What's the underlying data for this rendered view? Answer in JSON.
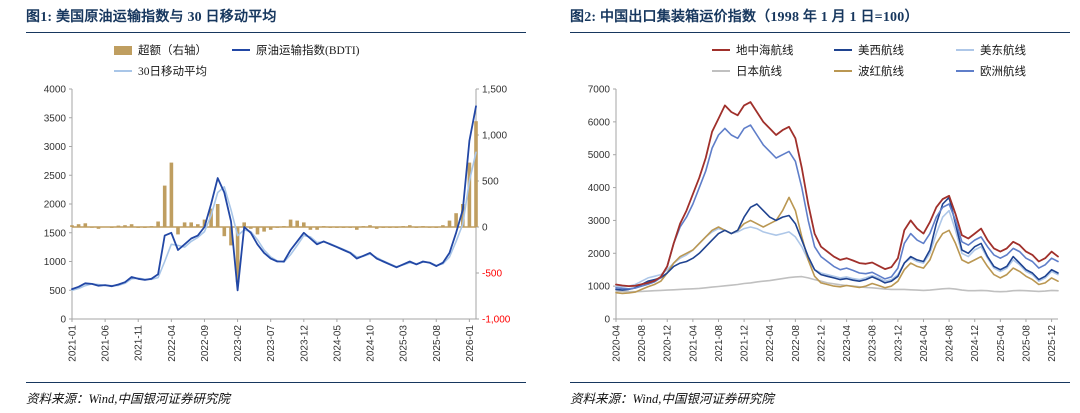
{
  "colors": {
    "title_navy": "#17375E",
    "rule_navy": "#17375E",
    "negative_axis_red": "#FF0000",
    "bdti_line": "#2247A5",
    "ma30_line": "#A9C6E8",
    "excess_bar": "#BF9E60",
    "mediterranean_line": "#A0302B",
    "us_west_line": "#1F4390",
    "us_east_line": "#AEC7E8",
    "japan_line": "#C0C0C0",
    "gulf_redsea_line": "#BA9752",
    "europe_line": "#5F7EC9"
  },
  "chart_data": [
    {
      "id": "figure1",
      "type": "line+bar",
      "title": "图1: 美国原油运输指数与 30 日移动平均",
      "source": "资料来源：Wind,中国银河证券研究院",
      "x_start": "2021-01",
      "x_frequency": "monthly",
      "x_ticks": [
        {
          "i": 0,
          "label": "2021-01"
        },
        {
          "i": 5,
          "label": "2021-06"
        },
        {
          "i": 10,
          "label": "2021-11"
        },
        {
          "i": 15,
          "label": "2022-04"
        },
        {
          "i": 20,
          "label": "2022-09"
        },
        {
          "i": 25,
          "label": "2023-02"
        },
        {
          "i": 30,
          "label": "2023-07"
        },
        {
          "i": 35,
          "label": "2023-12"
        },
        {
          "i": 40,
          "label": "2024-05"
        },
        {
          "i": 45,
          "label": "2024-10"
        },
        {
          "i": 50,
          "label": "2025-03"
        },
        {
          "i": 55,
          "label": "2025-08"
        },
        {
          "i": 60,
          "label": "2026-01"
        }
      ],
      "axes": {
        "left": {
          "min": 0,
          "max": 4000,
          "ticks": [
            {
              "v": 0,
              "label": "0"
            },
            {
              "v": 500,
              "label": "500"
            },
            {
              "v": 1000,
              "label": "1000"
            },
            {
              "v": 1500,
              "label": "1500"
            },
            {
              "v": 2000,
              "label": "2000"
            },
            {
              "v": 2500,
              "label": "2500"
            },
            {
              "v": 3000,
              "label": "3000"
            },
            {
              "v": 3500,
              "label": "3500"
            },
            {
              "v": 4000,
              "label": "4000"
            }
          ]
        },
        "right": {
          "min": -1000,
          "max": 1500,
          "ticks": [
            {
              "v": -1000,
              "label": "-1,000",
              "color": "#FF0000"
            },
            {
              "v": -500,
              "label": "-500",
              "color": "#FF0000"
            },
            {
              "v": 0,
              "label": "0"
            },
            {
              "v": 500,
              "label": "500"
            },
            {
              "v": 1000,
              "label": "1,000"
            },
            {
              "v": 1500,
              "label": "1,500"
            }
          ]
        }
      },
      "series": [
        {
          "name": "超额（右轴）",
          "style": "bar",
          "axis": "right",
          "color": "#BF9E60",
          "z": 1,
          "values": [
            20,
            30,
            40,
            0,
            -20,
            5,
            -10,
            15,
            20,
            30,
            -10,
            -10,
            10,
            60,
            450,
            700,
            -80,
            50,
            50,
            30,
            80,
            200,
            250,
            -100,
            -200,
            -600,
            50,
            -20,
            -80,
            -50,
            -30,
            -10,
            10,
            80,
            70,
            50,
            -30,
            -30,
            10,
            -10,
            -10,
            -10,
            -10,
            -30,
            10,
            20,
            -20,
            -10,
            -10,
            -10,
            10,
            20,
            -10,
            10,
            -5,
            -10,
            20,
            70,
            150,
            250,
            700,
            1150
          ]
        },
        {
          "name": "原油运输指数(BDTI)",
          "style": "line",
          "axis": "left",
          "color": "#2247A5",
          "width": 1.8,
          "z": 3,
          "values": [
            520,
            560,
            620,
            610,
            580,
            590,
            570,
            600,
            640,
            730,
            700,
            680,
            700,
            780,
            1450,
            1500,
            1200,
            1300,
            1400,
            1450,
            1600,
            2000,
            2450,
            2200,
            1700,
            500,
            1600,
            1500,
            1300,
            1150,
            1050,
            1000,
            1000,
            1200,
            1350,
            1500,
            1400,
            1300,
            1350,
            1300,
            1250,
            1200,
            1150,
            1050,
            1100,
            1150,
            1050,
            1000,
            950,
            900,
            950,
            1000,
            950,
            1000,
            980,
            920,
            980,
            1150,
            1500,
            1900,
            3100,
            3700
          ]
        },
        {
          "name": "30日移动平均",
          "style": "line",
          "axis": "left",
          "color": "#A9C6E8",
          "width": 1.6,
          "z": 2,
          "values": [
            500,
            530,
            580,
            610,
            600,
            585,
            580,
            585,
            620,
            700,
            710,
            690,
            690,
            720,
            1000,
            1300,
            1280,
            1250,
            1350,
            1420,
            1520,
            1800,
            2200,
            2300,
            1900,
            1450,
            1550,
            1520,
            1380,
            1200,
            1080,
            1010,
            990,
            1120,
            1280,
            1450,
            1430,
            1330,
            1340,
            1310,
            1260,
            1210,
            1160,
            1080,
            1090,
            1130,
            1070,
            1010,
            960,
            910,
            940,
            980,
            960,
            990,
            985,
            930,
            960,
            1080,
            1350,
            1650,
            2400,
            2900
          ]
        }
      ]
    },
    {
      "id": "figure2",
      "type": "line",
      "title": "图2: 中国出口集装箱运价指数（1998 年 1 月 1 日=100）",
      "source": "资料来源：Wind,中国银河证券研究院",
      "x_start": "2020-04",
      "x_frequency": "monthly",
      "x_ticks": [
        {
          "i": 0,
          "label": "2020-04"
        },
        {
          "i": 4,
          "label": "2020-08"
        },
        {
          "i": 8,
          "label": "2020-12"
        },
        {
          "i": 12,
          "label": "2021-04"
        },
        {
          "i": 16,
          "label": "2021-08"
        },
        {
          "i": 20,
          "label": "2021-12"
        },
        {
          "i": 24,
          "label": "2022-04"
        },
        {
          "i": 28,
          "label": "2022-08"
        },
        {
          "i": 32,
          "label": "2022-12"
        },
        {
          "i": 36,
          "label": "2023-04"
        },
        {
          "i": 40,
          "label": "2023-08"
        },
        {
          "i": 44,
          "label": "2023-12"
        },
        {
          "i": 48,
          "label": "2024-04"
        },
        {
          "i": 52,
          "label": "2024-08"
        },
        {
          "i": 56,
          "label": "2024-12"
        },
        {
          "i": 60,
          "label": "2025-04"
        },
        {
          "i": 64,
          "label": "2025-08"
        },
        {
          "i": 68,
          "label": "2025-12"
        }
      ],
      "axes": {
        "left": {
          "min": 0,
          "max": 7000,
          "ticks": [
            {
              "v": 0,
              "label": "0"
            },
            {
              "v": 1000,
              "label": "1000"
            },
            {
              "v": 2000,
              "label": "2000"
            },
            {
              "v": 3000,
              "label": "3000"
            },
            {
              "v": 4000,
              "label": "4000"
            },
            {
              "v": 5000,
              "label": "5000"
            },
            {
              "v": 6000,
              "label": "6000"
            },
            {
              "v": 7000,
              "label": "7000"
            }
          ]
        }
      },
      "series": [
        {
          "name": "地中海航线",
          "style": "line",
          "axis": "left",
          "color": "#A0302B",
          "width": 1.8,
          "z": 6,
          "values": [
            1050,
            1020,
            1000,
            1010,
            1060,
            1100,
            1160,
            1280,
            1600,
            2300,
            2900,
            3300,
            3800,
            4300,
            4900,
            5700,
            6100,
            6500,
            6300,
            6200,
            6500,
            6600,
            6300,
            6000,
            5800,
            5600,
            5750,
            5850,
            5500,
            4600,
            3500,
            2600,
            2200,
            2050,
            1900,
            1800,
            1850,
            1780,
            1700,
            1680,
            1720,
            1620,
            1520,
            1580,
            1850,
            2700,
            3000,
            2750,
            2600,
            2950,
            3400,
            3650,
            3750,
            3200,
            2550,
            2450,
            2600,
            2750,
            2400,
            2150,
            2050,
            2150,
            2350,
            2250,
            2050,
            1950,
            1750,
            1850,
            2050,
            1900
          ]
        },
        {
          "name": "美西航线",
          "style": "line",
          "axis": "left",
          "color": "#1F4390",
          "width": 1.6,
          "z": 4,
          "values": [
            900,
            880,
            900,
            950,
            1050,
            1150,
            1200,
            1250,
            1400,
            1600,
            1700,
            1750,
            1850,
            2000,
            2200,
            2400,
            2600,
            2700,
            2600,
            2700,
            3100,
            3400,
            3500,
            3300,
            3100,
            3000,
            3100,
            3150,
            2900,
            2400,
            1900,
            1500,
            1350,
            1300,
            1250,
            1200,
            1230,
            1180,
            1150,
            1200,
            1280,
            1200,
            1100,
            1150,
            1300,
            1700,
            1900,
            1800,
            1750,
            2100,
            2900,
            3500,
            3700,
            2900,
            2100,
            2000,
            2200,
            2300,
            1900,
            1600,
            1500,
            1600,
            1900,
            1700,
            1500,
            1400,
            1200,
            1300,
            1500,
            1400
          ]
        },
        {
          "name": "美东航线",
          "style": "line",
          "axis": "left",
          "color": "#AEC7E8",
          "width": 1.6,
          "z": 2,
          "values": [
            1000,
            980,
            1000,
            1050,
            1150,
            1250,
            1300,
            1350,
            1500,
            1700,
            1850,
            1950,
            2100,
            2300,
            2500,
            2650,
            2750,
            2700,
            2600,
            2650,
            2750,
            2800,
            2750,
            2650,
            2600,
            2550,
            2600,
            2650,
            2500,
            2200,
            1800,
            1500,
            1400,
            1350,
            1300,
            1250,
            1280,
            1230,
            1200,
            1250,
            1320,
            1250,
            1150,
            1200,
            1350,
            1700,
            1850,
            1750,
            1700,
            2000,
            2600,
            3100,
            3300,
            2700,
            2000,
            1900,
            2100,
            2200,
            1850,
            1550,
            1450,
            1550,
            1800,
            1650,
            1450,
            1350,
            1150,
            1250,
            1450,
            1350
          ]
        },
        {
          "name": "日本航线",
          "style": "line",
          "axis": "left",
          "color": "#C0C0C0",
          "width": 1.6,
          "z": 1,
          "values": [
            850,
            840,
            830,
            830,
            840,
            850,
            860,
            870,
            880,
            890,
            900,
            910,
            920,
            930,
            950,
            970,
            990,
            1010,
            1030,
            1050,
            1080,
            1100,
            1130,
            1150,
            1170,
            1200,
            1230,
            1260,
            1280,
            1290,
            1250,
            1200,
            1150,
            1100,
            1070,
            1040,
            1020,
            1000,
            980,
            960,
            950,
            930,
            910,
            900,
            900,
            900,
            890,
            880,
            870,
            880,
            900,
            920,
            930,
            910,
            880,
            860,
            860,
            870,
            860,
            840,
            830,
            840,
            860,
            870,
            860,
            850,
            840,
            850,
            870,
            860
          ]
        },
        {
          "name": "波红航线",
          "style": "line",
          "axis": "left",
          "color": "#BA9752",
          "width": 1.6,
          "z": 3,
          "values": [
            800,
            780,
            790,
            820,
            900,
            980,
            1050,
            1150,
            1400,
            1700,
            1900,
            2000,
            2100,
            2300,
            2500,
            2700,
            2800,
            2700,
            2600,
            2700,
            2900,
            3000,
            2900,
            2800,
            2900,
            3000,
            3300,
            3700,
            3300,
            2500,
            1800,
            1300,
            1100,
            1050,
            1000,
            980,
            1020,
            990,
            960,
            1000,
            1080,
            1020,
            950,
            1000,
            1150,
            1500,
            1700,
            1600,
            1550,
            1800,
            2300,
            2600,
            2700,
            2300,
            1800,
            1700,
            1800,
            1900,
            1600,
            1350,
            1250,
            1350,
            1550,
            1450,
            1300,
            1200,
            1050,
            1100,
            1250,
            1150
          ]
        },
        {
          "name": "欧洲航线",
          "style": "line",
          "axis": "left",
          "color": "#5F7EC9",
          "width": 1.6,
          "z": 5,
          "values": [
            950,
            930,
            920,
            940,
            1000,
            1060,
            1130,
            1260,
            1600,
            2300,
            2800,
            3100,
            3500,
            4000,
            4500,
            5200,
            5600,
            5800,
            5600,
            5500,
            5800,
            5900,
            5600,
            5300,
            5100,
            4900,
            5000,
            5100,
            4800,
            4000,
            3000,
            2200,
            1900,
            1750,
            1600,
            1500,
            1550,
            1480,
            1400,
            1380,
            1420,
            1320,
            1220,
            1280,
            1550,
            2300,
            2600,
            2400,
            2300,
            2600,
            3100,
            3400,
            3500,
            3000,
            2350,
            2250,
            2400,
            2500,
            2200,
            1950,
            1850,
            1950,
            2150,
            2050,
            1850,
            1750,
            1550,
            1650,
            1850,
            1750
          ]
        }
      ]
    }
  ]
}
